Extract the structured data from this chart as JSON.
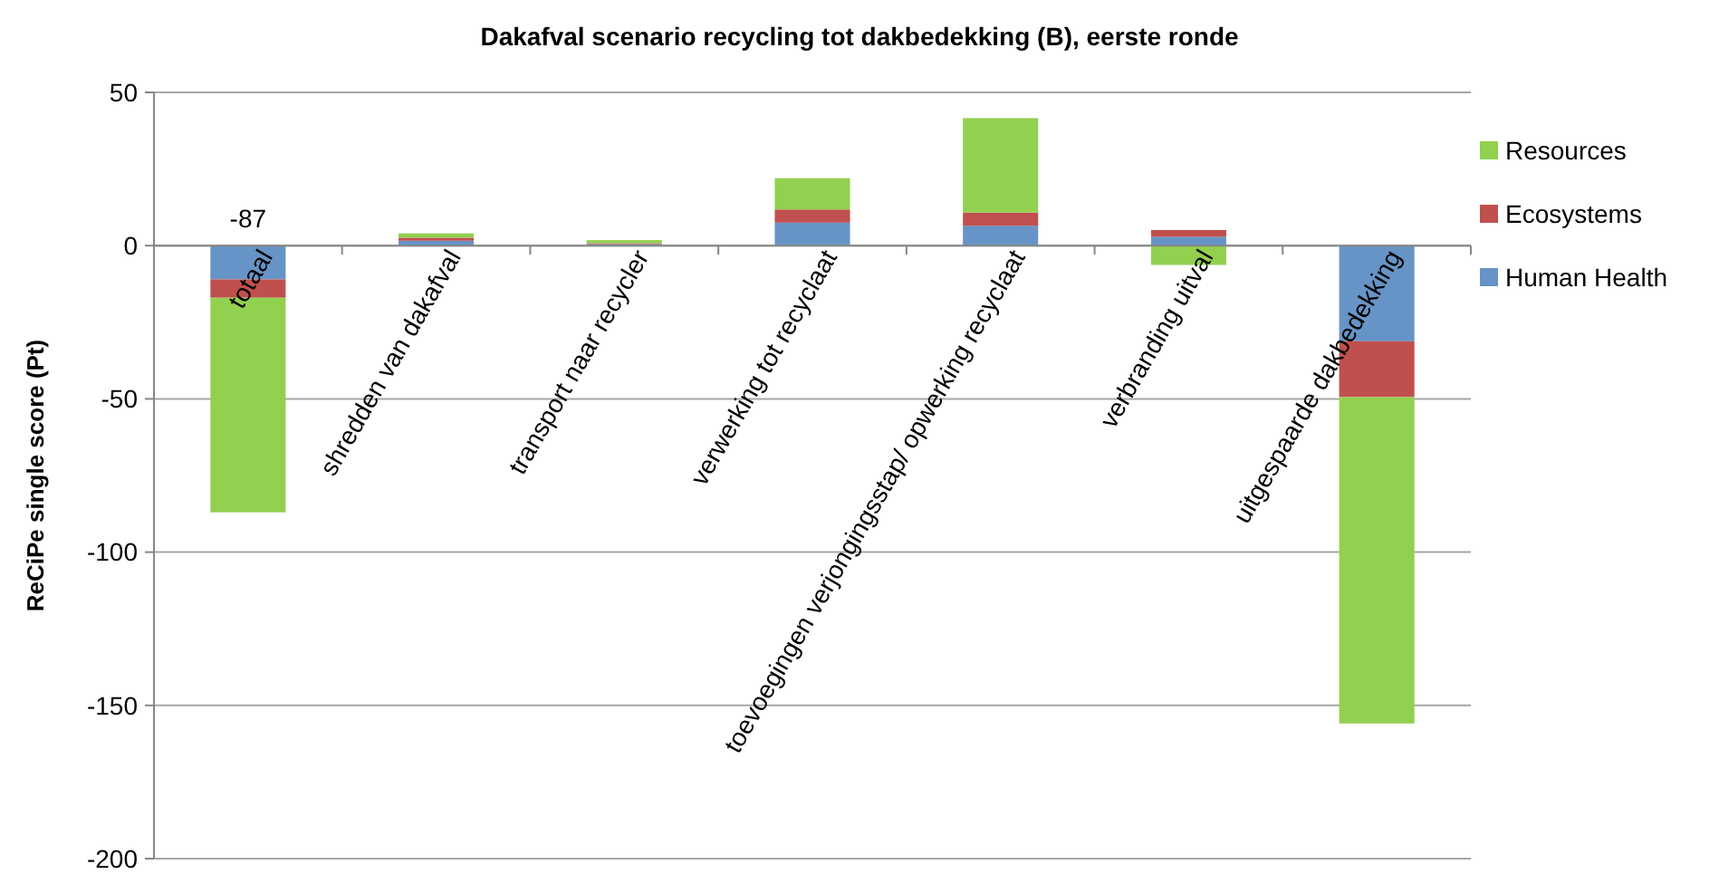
{
  "chart_data": {
    "type": "bar",
    "title": "Dakafval scenario recycling tot dakbedekking (B), eerste ronde",
    "ylabel": "ReCiPe single score (Pt)",
    "categories": [
      "totaal",
      "shredden van dakafval",
      "transport naar recycler",
      "verwerking tot recyclaat",
      "toevoegingen verjongingsstap/ opwerking recyclaat",
      "verbranding uitval",
      "uitgespaarde dakbedekking"
    ],
    "series": [
      {
        "name": "Human Health",
        "color": "#6794c6",
        "values": [
          -11,
          1.6,
          0.5,
          7.5,
          6.5,
          2.9,
          -31.2
        ]
      },
      {
        "name": "Ecosystems",
        "color": "#c0504d",
        "values": [
          -6,
          1,
          0.3,
          4.3,
          4.3,
          2.2,
          -18.2
        ]
      },
      {
        "name": "Resources",
        "color": "#92d050",
        "values": [
          -70,
          1.4,
          1,
          10.2,
          30.8,
          -6.3,
          -106.5
        ]
      }
    ],
    "stacked": true,
    "totals": [
      "-87",
      null,
      null,
      null,
      null,
      null,
      null
    ],
    "ylim": [
      -200,
      50
    ],
    "yticks": [
      -200,
      -150,
      -100,
      -50,
      0,
      50
    ],
    "grid": "y",
    "legend": "right"
  }
}
